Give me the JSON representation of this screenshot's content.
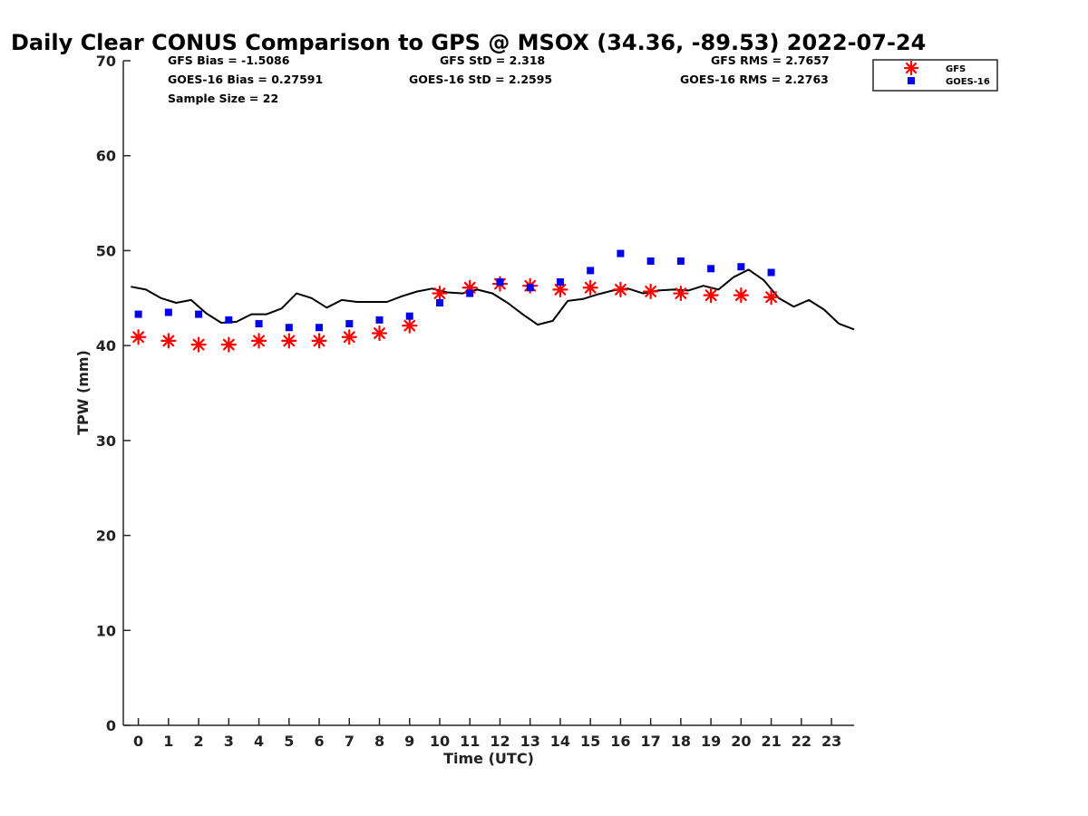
{
  "colors": {
    "gfs": "#ff0000",
    "goes": "#0000ee",
    "gps": "#000000",
    "axis": "#262626"
  },
  "chart_data": {
    "type": "scatter",
    "title": "Daily Clear CONUS Comparison to GPS @ MSOX (34.36, -89.53) 2022-07-24",
    "xlabel": "Time (UTC)",
    "ylabel": "TPW (mm)",
    "xlim": [
      -0.5,
      23.75
    ],
    "ylim": [
      0,
      70
    ],
    "xticks": [
      0,
      1,
      2,
      3,
      4,
      5,
      6,
      7,
      8,
      9,
      10,
      11,
      12,
      13,
      14,
      15,
      16,
      17,
      18,
      19,
      20,
      21,
      22,
      23
    ],
    "xtick_labels": [
      "0",
      "1",
      "2",
      "3",
      "4",
      "5",
      "6",
      "7",
      "8",
      "9",
      "10",
      "11",
      "12",
      "13",
      "14",
      "15",
      "16",
      "17",
      "18",
      "19",
      "20",
      "21",
      "22",
      "23"
    ],
    "yticks": [
      0,
      10,
      20,
      30,
      40,
      50,
      60,
      70
    ],
    "ytick_labels": [
      "0",
      "10",
      "20",
      "30",
      "40",
      "50",
      "60",
      "70"
    ],
    "legend_position": "top-right",
    "stats": {
      "gfs_bias": "GFS Bias = -1.5086",
      "gfs_std": "GFS StD = 2.318",
      "gfs_rms": "GFS RMS = 2.7657",
      "goes_bias": "GOES-16 Bias = 0.27591",
      "goes_std": "GOES-16 StD = 2.2595",
      "goes_rms": "GOES-16 RMS = 2.2763",
      "sample_size": "Sample Size = 22"
    },
    "series": [
      {
        "name": "GFS",
        "marker": "asterisk",
        "x": [
          0,
          1,
          2,
          3,
          4,
          5,
          6,
          7,
          8,
          9,
          10,
          11,
          12,
          13,
          14,
          15,
          16,
          17,
          18,
          19,
          20,
          21
        ],
        "y": [
          40.9,
          40.5,
          40.1,
          40.1,
          40.5,
          40.5,
          40.5,
          40.9,
          41.3,
          42.1,
          45.5,
          46.1,
          46.5,
          46.3,
          45.9,
          46.1,
          45.9,
          45.7,
          45.5,
          45.3,
          45.3,
          45.1
        ]
      },
      {
        "name": "GOES-16",
        "marker": "square",
        "x": [
          0,
          1,
          2,
          3,
          4,
          5,
          6,
          7,
          8,
          9,
          10,
          11,
          12,
          13,
          14,
          15,
          16,
          17,
          18,
          19,
          20,
          21
        ],
        "y": [
          43.3,
          43.5,
          43.3,
          42.7,
          42.3,
          41.9,
          41.9,
          42.3,
          42.7,
          43.1,
          44.5,
          45.5,
          46.7,
          46.1,
          46.7,
          47.9,
          49.7,
          48.9,
          48.9,
          48.1,
          48.3,
          47.7
        ]
      },
      {
        "name": "GPS",
        "marker": "line",
        "x": [
          -0.25,
          0.25,
          0.75,
          1.25,
          1.75,
          2.25,
          2.75,
          3.25,
          3.75,
          4.25,
          4.75,
          5.25,
          5.75,
          6.25,
          6.75,
          7.25,
          7.75,
          8.25,
          8.75,
          9.25,
          9.75,
          10.25,
          10.75,
          11.25,
          11.75,
          12.25,
          12.75,
          13.25,
          13.75,
          14.25,
          14.75,
          15.25,
          15.75,
          16.25,
          16.75,
          17.25,
          17.75,
          18.25,
          18.75,
          19.25,
          19.75,
          20.25,
          20.75,
          21.25,
          21.75,
          22.25,
          22.75,
          23.25,
          23.75
        ],
        "y": [
          46.2,
          45.9,
          45.0,
          44.5,
          44.8,
          43.4,
          42.4,
          42.5,
          43.3,
          43.3,
          43.9,
          45.5,
          45.0,
          44.0,
          44.8,
          44.6,
          44.6,
          44.6,
          45.2,
          45.7,
          46.0,
          45.6,
          45.5,
          45.9,
          45.5,
          44.5,
          43.3,
          42.2,
          42.6,
          44.7,
          44.9,
          45.4,
          45.8,
          46.0,
          45.5,
          45.8,
          45.9,
          45.8,
          46.3,
          45.9,
          47.2,
          48.0,
          46.9,
          45.0,
          44.1,
          44.8,
          43.8,
          42.3,
          41.7
        ]
      }
    ]
  }
}
